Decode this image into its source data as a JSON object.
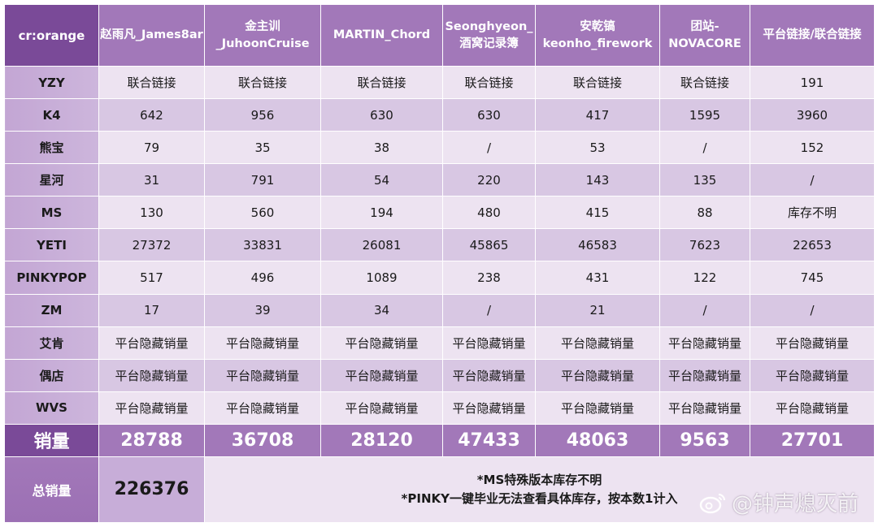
{
  "table": {
    "corner": "cr:orange",
    "columns": [
      {
        "line1": "赵雨凡_James8ar",
        "line2": ""
      },
      {
        "line1": "金主训",
        "line2": "_JuhoonCruise"
      },
      {
        "line1": "MARTIN_Chord",
        "line2": ""
      },
      {
        "line1": "Seonghyeon_",
        "line2": "酒窝记录簿"
      },
      {
        "line1": "安乾镐",
        "line2": "keonho_firework"
      },
      {
        "line1": "团站-",
        "line2": "NOVACORE"
      },
      {
        "line1": "平台链接/联合链接",
        "line2": ""
      }
    ],
    "rows": [
      {
        "label": "YZY",
        "values": [
          "联合链接",
          "联合链接",
          "联合链接",
          "联合链接",
          "联合链接",
          "联合链接",
          "191"
        ]
      },
      {
        "label": "K4",
        "values": [
          "642",
          "956",
          "630",
          "630",
          "417",
          "1595",
          "3960"
        ]
      },
      {
        "label": "熊宝",
        "values": [
          "79",
          "35",
          "38",
          "/",
          "53",
          "/",
          "152"
        ]
      },
      {
        "label": "星河",
        "values": [
          "31",
          "791",
          "54",
          "220",
          "143",
          "135",
          "/"
        ]
      },
      {
        "label": "MS",
        "values": [
          "130",
          "560",
          "194",
          "480",
          "415",
          "88",
          "库存不明"
        ]
      },
      {
        "label": "YETI",
        "values": [
          "27372",
          "33831",
          "26081",
          "45865",
          "46583",
          "7623",
          "22653"
        ]
      },
      {
        "label": "PINKYPOP",
        "values": [
          "517",
          "496",
          "1089",
          "238",
          "431",
          "122",
          "745"
        ]
      },
      {
        "label": "ZM",
        "values": [
          "17",
          "39",
          "34",
          "/",
          "21",
          "/",
          "/"
        ]
      },
      {
        "label": "艾肯",
        "values": [
          "平台隐藏销量",
          "平台隐藏销量",
          "平台隐藏销量",
          "平台隐藏销量",
          "平台隐藏销量",
          "平台隐藏销量",
          "平台隐藏销量"
        ]
      },
      {
        "label": "偶店",
        "values": [
          "平台隐藏销量",
          "平台隐藏销量",
          "平台隐藏销量",
          "平台隐藏销量",
          "平台隐藏销量",
          "平台隐藏销量",
          "平台隐藏销量"
        ]
      },
      {
        "label": "WVS",
        "values": [
          "平台隐藏销量",
          "平台隐藏销量",
          "平台隐藏销量",
          "平台隐藏销量",
          "平台隐藏销量",
          "平台隐藏销量",
          "平台隐藏销量"
        ]
      }
    ],
    "totals": {
      "label": "销量",
      "values": [
        "28788",
        "36708",
        "28120",
        "47433",
        "48063",
        "9563",
        "27701"
      ]
    },
    "grand_total": {
      "label": "总销量",
      "value": "226376"
    },
    "notes": [
      "*MS特殊版本库存不明",
      "*PINKY一键毕业无法查看具体库存，按本数1计入"
    ]
  },
  "watermark": {
    "text": "@钟声熄灭前",
    "icon": "weibo-icon"
  },
  "colors": {
    "corner": "#7a4a98",
    "header": "#a278b9",
    "row_light": "#ede3f1",
    "row_dark": "#d8c7e3",
    "row_label": "#c3a6d4",
    "grand_value": "#c7add8"
  }
}
